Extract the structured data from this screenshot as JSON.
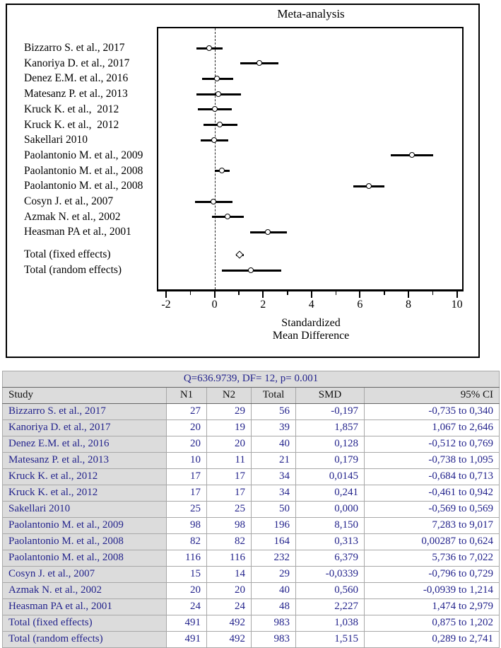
{
  "figure": {
    "title": "Meta-analysis",
    "xlabel_line1": "Standardized",
    "xlabel_line2": "Mean Difference"
  },
  "chart_data": {
    "type": "forest",
    "title": "Meta-analysis",
    "xlabel": "Standardized Mean Difference",
    "xlim": [
      -2.3,
      10.3
    ],
    "x_major_ticks": [
      -2,
      0,
      2,
      4,
      6,
      8,
      10
    ],
    "x_minor_ticks": [
      -1,
      1,
      3,
      5,
      7,
      9
    ],
    "zero_line": 0,
    "studies": [
      {
        "label": "Bizzarro S. et al., 2017",
        "smd": -0.197,
        "ci_low": -0.735,
        "ci_high": 0.34,
        "total": false,
        "marker": "circle"
      },
      {
        "label": "Kanoriya D. et al., 2017",
        "smd": 1.857,
        "ci_low": 1.067,
        "ci_high": 2.646,
        "total": false,
        "marker": "circle"
      },
      {
        "label": "Denez E.M. et al., 2016",
        "smd": 0.128,
        "ci_low": -0.512,
        "ci_high": 0.769,
        "total": false,
        "marker": "circle"
      },
      {
        "label": "Matesanz P. et al., 2013",
        "smd": 0.179,
        "ci_low": -0.738,
        "ci_high": 1.095,
        "total": false,
        "marker": "circle"
      },
      {
        "label": "Kruck K. et al.,  2012",
        "smd": 0.0145,
        "ci_low": -0.684,
        "ci_high": 0.713,
        "total": false,
        "marker": "circle"
      },
      {
        "label": "Kruck K. et al.,  2012",
        "smd": 0.241,
        "ci_low": -0.461,
        "ci_high": 0.942,
        "total": false,
        "marker": "circle"
      },
      {
        "label": "Sakellari 2010",
        "smd": 0.0,
        "ci_low": -0.569,
        "ci_high": 0.569,
        "total": false,
        "marker": "circle"
      },
      {
        "label": "Paolantonio M. et al., 2009",
        "smd": 8.15,
        "ci_low": 7.283,
        "ci_high": 9.017,
        "total": false,
        "marker": "circle"
      },
      {
        "label": "Paolantonio M. et al., 2008",
        "smd": 0.313,
        "ci_low": 0.00287,
        "ci_high": 0.624,
        "total": false,
        "marker": "circle"
      },
      {
        "label": "Paolantonio M. et al., 2008",
        "smd": 6.379,
        "ci_low": 5.736,
        "ci_high": 7.022,
        "total": false,
        "marker": "circle"
      },
      {
        "label": "Cosyn J. et al., 2007",
        "smd": -0.0339,
        "ci_low": -0.796,
        "ci_high": 0.729,
        "total": false,
        "marker": "circle"
      },
      {
        "label": "Azmak N. et al., 2002",
        "smd": 0.56,
        "ci_low": -0.0939,
        "ci_high": 1.214,
        "total": false,
        "marker": "circle"
      },
      {
        "label": "Heasman PA et al., 2001",
        "smd": 2.227,
        "ci_low": 1.474,
        "ci_high": 2.979,
        "total": false,
        "marker": "circle"
      },
      {
        "label": "Total (fixed effects)",
        "smd": 1.038,
        "ci_low": 0.875,
        "ci_high": 1.202,
        "total": true,
        "marker": "diamond"
      },
      {
        "label": "Total (random effects)",
        "smd": 1.515,
        "ci_low": 0.289,
        "ci_high": 2.741,
        "total": true,
        "marker": "circle"
      }
    ]
  },
  "table": {
    "heterogeneity": "Q=636.9739, DF= 12, p= 0.001",
    "columns": [
      "Study",
      "N1",
      "N2",
      "Total",
      "SMD",
      "95% CI"
    ],
    "rows": [
      [
        "Bizzarro S. et al., 2017",
        "27",
        "29",
        "56",
        "-0,197",
        "-0,735 to 0,340"
      ],
      [
        "Kanoriya D. et al., 2017",
        "20",
        "19",
        "39",
        "1,857",
        "1,067 to 2,646"
      ],
      [
        "Denez E.M. et al., 2016",
        "20",
        "20",
        "40",
        "0,128",
        "-0,512 to 0,769"
      ],
      [
        "Matesanz P. et al., 2013",
        "10",
        "11",
        "21",
        "0,179",
        "-0,738 to 1,095"
      ],
      [
        "Kruck K. et al., 2012",
        "17",
        "17",
        "34",
        "0,0145",
        "-0,684 to 0,713"
      ],
      [
        "Kruck K. et al., 2012",
        "17",
        "17",
        "34",
        "0,241",
        "-0,461 to 0,942"
      ],
      [
        "Sakellari 2010",
        "25",
        "25",
        "50",
        "0,000",
        "-0,569 to 0,569"
      ],
      [
        "Paolantonio M. et al., 2009",
        "98",
        "98",
        "196",
        "8,150",
        "7,283 to 9,017"
      ],
      [
        "Paolantonio M. et al., 2008",
        "82",
        "82",
        "164",
        "0,313",
        "0,00287 to 0,624"
      ],
      [
        "Paolantonio M. et al., 2008",
        "116",
        "116",
        "232",
        "6,379",
        "5,736 to 7,022"
      ],
      [
        "Cosyn J. et al., 2007",
        "15",
        "14",
        "29",
        "-0,0339",
        "-0,796 to 0,729"
      ],
      [
        "Azmak N. et al., 2002",
        "20",
        "20",
        "40",
        "0,560",
        "-0,0939 to 1,214"
      ],
      [
        "Heasman PA et al., 2001",
        "24",
        "24",
        "48",
        "2,227",
        "1,474 to 2,979"
      ],
      [
        "Total (fixed effects)",
        "491",
        "492",
        "983",
        "1,038",
        "0,875 to 1,202"
      ],
      [
        "Total (random effects)",
        "491",
        "492",
        "983",
        "1,515",
        "0,289 to 2,741"
      ]
    ]
  },
  "colors": {
    "table_text": "#23238c",
    "row_shade": "#dcdcdc",
    "plot_ink": "#000000"
  }
}
